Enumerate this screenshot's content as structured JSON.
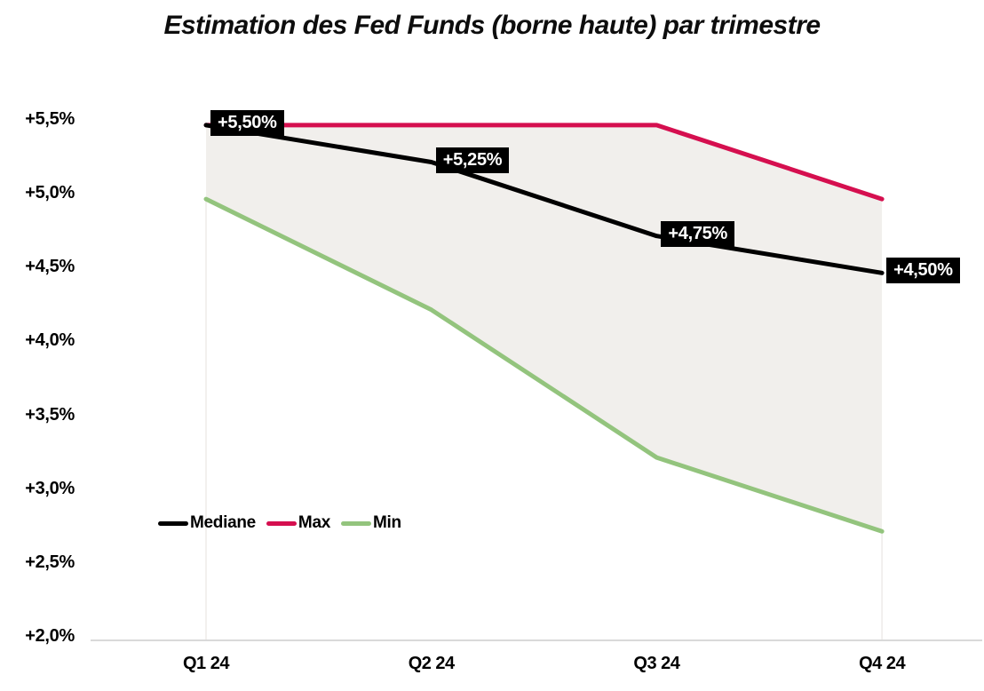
{
  "chart_data": {
    "type": "line",
    "title": "Estimation des Fed Funds (borne haute) par trimestre",
    "categories": [
      "Q1 24",
      "Q2 24",
      "Q3 24",
      "Q4 24"
    ],
    "series": [
      {
        "name": "Mediane",
        "color": "#000000",
        "values": [
          5.5,
          5.25,
          4.75,
          4.5
        ]
      },
      {
        "name": "Max",
        "color": "#d50f4f",
        "values": [
          5.5,
          5.5,
          5.5,
          5.0
        ]
      },
      {
        "name": "Min",
        "color": "#93c47d",
        "values": [
          5.0,
          4.25,
          3.25,
          2.75
        ]
      }
    ],
    "median_point_labels": [
      "+5,50%",
      "+5,25%",
      "+4,75%",
      "+4,50%"
    ],
    "y_axis": {
      "tick_labels": [
        "+5,5%",
        "+5,0%",
        "+4,5%",
        "+4,0%",
        "+3,5%",
        "+3,0%",
        "+2,5%",
        "+2,0%"
      ],
      "tick_values": [
        5.5,
        5.0,
        4.5,
        4.0,
        3.5,
        3.0,
        2.5,
        2.0
      ],
      "ylim": [
        2.0,
        5.85
      ]
    },
    "legend": {
      "position": "inside bottom-left",
      "items": [
        {
          "label": "Mediane",
          "color": "#000000"
        },
        {
          "label": "Max",
          "color": "#d50f4f"
        },
        {
          "label": "Min",
          "color": "#93c47d"
        }
      ]
    },
    "style": {
      "band_fill": "#f1efec",
      "band_between": [
        "Max",
        "Min"
      ],
      "axis_line_color": "#d9d9d9",
      "data_label_bg": "#000000",
      "data_label_text": "#ffffff"
    },
    "grid": false
  }
}
